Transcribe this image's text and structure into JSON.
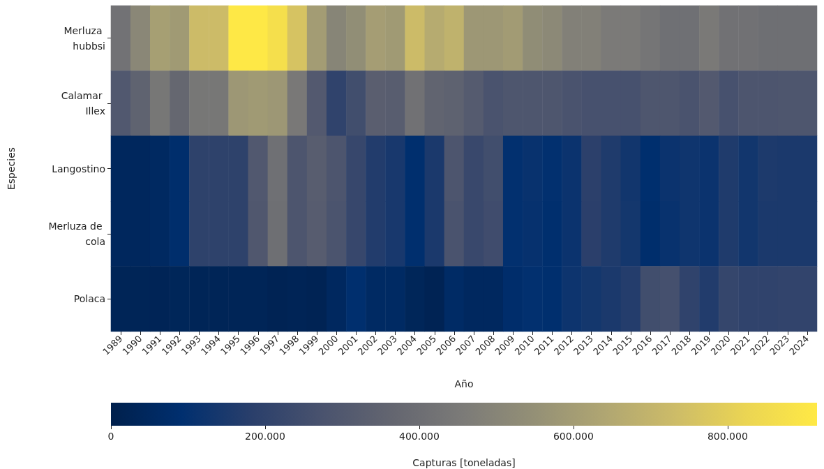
{
  "chart_data": {
    "type": "heatmap",
    "xlabel": "Año",
    "ylabel": "Especies",
    "clabel": "Capturas [toneladas]",
    "categories": [
      "1989",
      "1990",
      "1991",
      "1992",
      "1993",
      "1994",
      "1995",
      "1996",
      "1997",
      "1998",
      "1999",
      "2000",
      "2001",
      "2002",
      "2003",
      "2004",
      "2005",
      "2006",
      "2007",
      "2008",
      "2009",
      "2010",
      "2011",
      "2012",
      "2013",
      "2014",
      "2015",
      "2016",
      "2017",
      "2018",
      "2019",
      "2020",
      "2021",
      "2022",
      "2023",
      "2024"
    ],
    "y_categories": [
      "Merluza hubbsi",
      "Calamar Illex",
      "Langostino",
      "Merluza de cola",
      "Polaca"
    ],
    "cells": [
      [
        420000,
        510000,
        610000,
        590000,
        730000,
        730000,
        910000,
        910000,
        870000,
        760000,
        600000,
        500000,
        540000,
        605000,
        590000,
        730000,
        660000,
        690000,
        580000,
        580000,
        595000,
        535000,
        520000,
        480000,
        480000,
        455000,
        455000,
        430000,
        410000,
        410000,
        450000,
        415000,
        415000,
        405000,
        405000,
        405000
      ],
      [
        300000,
        350000,
        440000,
        370000,
        440000,
        440000,
        580000,
        590000,
        580000,
        445000,
        305000,
        200000,
        250000,
        330000,
        325000,
        415000,
        355000,
        345000,
        315000,
        275000,
        290000,
        290000,
        290000,
        275000,
        265000,
        265000,
        265000,
        290000,
        290000,
        275000,
        305000,
        265000,
        285000,
        285000,
        290000,
        290000
      ],
      [
        45000,
        45000,
        55000,
        85000,
        195000,
        195000,
        195000,
        300000,
        410000,
        285000,
        325000,
        285000,
        220000,
        165000,
        145000,
        90000,
        150000,
        285000,
        225000,
        250000,
        95000,
        110000,
        95000,
        115000,
        190000,
        160000,
        130000,
        90000,
        115000,
        125000,
        115000,
        160000,
        130000,
        155000,
        150000,
        150000
      ],
      [
        45000,
        45000,
        55000,
        85000,
        195000,
        195000,
        195000,
        295000,
        405000,
        285000,
        320000,
        280000,
        220000,
        165000,
        145000,
        90000,
        150000,
        275000,
        225000,
        245000,
        95000,
        105000,
        90000,
        115000,
        185000,
        160000,
        135000,
        85000,
        110000,
        125000,
        115000,
        160000,
        130000,
        150000,
        150000,
        150000
      ],
      [
        30000,
        30000,
        25000,
        35000,
        30000,
        30000,
        30000,
        30000,
        20000,
        25000,
        20000,
        50000,
        90000,
        60000,
        60000,
        35000,
        20000,
        65000,
        50000,
        50000,
        80000,
        95000,
        90000,
        120000,
        135000,
        150000,
        170000,
        250000,
        260000,
        200000,
        165000,
        215000,
        200000,
        200000,
        205000,
        205000
      ]
    ],
    "clim": [
      0,
      916000
    ],
    "cticks": [
      0,
      {
        "value": 200000,
        "label": "200.000"
      },
      {
        "value": 400000,
        "label": "400.000"
      },
      {
        "value": 600000,
        "label": "600.000"
      },
      {
        "value": 800000,
        "label": "800.000"
      }
    ]
  }
}
